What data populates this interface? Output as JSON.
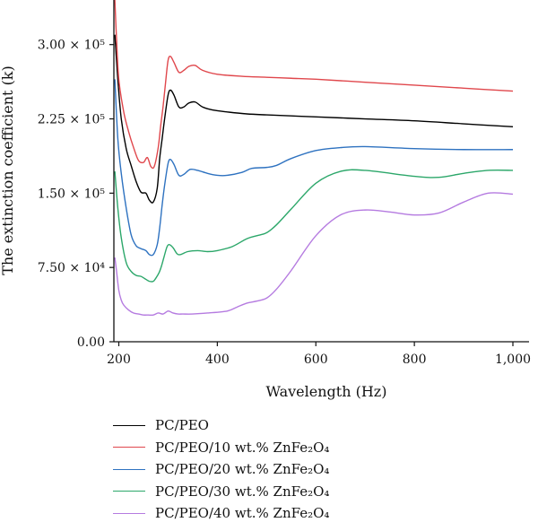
{
  "chart_data": {
    "type": "line",
    "title": "",
    "xlabel": "Wavelength (Hz)",
    "ylabel": "The extinction coefficient (k)",
    "xlim": [
      190,
      1000
    ],
    "ylim": [
      0,
      345000
    ],
    "x_ticks": [
      200,
      400,
      600,
      800,
      1000
    ],
    "x_tick_labels": [
      "200",
      "400",
      "600",
      "800",
      "1,000"
    ],
    "y_ticks": [
      0,
      75000,
      150000,
      225000,
      300000
    ],
    "y_tick_labels": [
      "0.00",
      "7.50 × 10⁴",
      "1.50 × 10⁵",
      "2.25 × 10⁵",
      "3.00 × 10⁵"
    ],
    "grid": false,
    "legend_position": "below",
    "series": [
      {
        "name": "PC/PEO",
        "color": "#000000",
        "x": [
          192,
          198,
          205,
          215,
          225,
          235,
          245,
          255,
          262,
          270,
          278,
          283,
          288,
          293,
          300,
          305,
          312,
          322,
          332,
          342,
          355,
          370,
          390,
          420,
          460,
          500,
          550,
          600,
          700,
          800,
          900,
          1000
        ],
        "y": [
          310000,
          265000,
          225000,
          195000,
          178000,
          162000,
          151000,
          150000,
          143000,
          141000,
          155000,
          185000,
          205000,
          225000,
          249000,
          254000,
          249000,
          237000,
          237000,
          241000,
          242000,
          237000,
          234000,
          232000,
          230000,
          229000,
          228000,
          227000,
          225000,
          223000,
          220000,
          217000
        ]
      },
      {
        "name": "PC/PEO/10 wt.% ZnFe₂O₄",
        "color": "#e0474c",
        "x": [
          192,
          195,
          200,
          210,
          220,
          230,
          240,
          250,
          258,
          265,
          272,
          280,
          285,
          290,
          295,
          300,
          305,
          312,
          322,
          332,
          342,
          355,
          370,
          400,
          450,
          500,
          550,
          600,
          700,
          800,
          900,
          1000
        ],
        "y": [
          345000,
          310000,
          265000,
          232000,
          212000,
          196000,
          183000,
          181000,
          186000,
          177000,
          177000,
          196000,
          218000,
          238000,
          262000,
          284000,
          288000,
          282000,
          272000,
          274000,
          278000,
          279000,
          274000,
          270000,
          268000,
          267000,
          266000,
          265000,
          262000,
          259000,
          256000,
          253000
        ]
      },
      {
        "name": "PC/PEO/20 wt.% ZnFe₂O₄",
        "color": "#2e72c0",
        "x": [
          192,
          198,
          205,
          215,
          225,
          235,
          245,
          255,
          262,
          270,
          278,
          283,
          288,
          293,
          300,
          305,
          312,
          322,
          332,
          345,
          360,
          380,
          400,
          420,
          450,
          470,
          500,
          520,
          550,
          600,
          650,
          700,
          800,
          900,
          1000
        ],
        "y": [
          265000,
          205000,
          170000,
          135000,
          108000,
          97000,
          94000,
          92000,
          88000,
          88000,
          98000,
          115000,
          138000,
          158000,
          180000,
          184000,
          179000,
          168000,
          169000,
          174000,
          173000,
          170000,
          168000,
          168000,
          171000,
          175000,
          176000,
          178000,
          185000,
          193000,
          196000,
          197000,
          195000,
          194000,
          194000
        ]
      },
      {
        "name": "PC/PEO/30 wt.% ZnFe₂O₄",
        "color": "#2ca76a",
        "x": [
          192,
          198,
          205,
          215,
          225,
          235,
          245,
          255,
          262,
          270,
          275,
          282,
          287,
          292,
          298,
          303,
          310,
          318,
          325,
          340,
          360,
          380,
          400,
          430,
          460,
          480,
          500,
          520,
          550,
          600,
          650,
          700,
          800,
          850,
          900,
          950,
          1000
        ],
        "y": [
          172000,
          135000,
          105000,
          80000,
          71000,
          67000,
          66000,
          63000,
          61000,
          61000,
          64000,
          70000,
          77000,
          86000,
          96000,
          98000,
          95000,
          89000,
          88000,
          91000,
          92000,
          91000,
          92000,
          96000,
          104000,
          107000,
          110000,
          118000,
          134000,
          160000,
          172000,
          173000,
          167000,
          166000,
          170000,
          173000,
          173000
        ]
      },
      {
        "name": "PC/PEO/40 wt.% ZnFe₂O₄",
        "color": "#b57be0",
        "x": [
          192,
          195,
          200,
          205,
          210,
          220,
          230,
          240,
          250,
          260,
          270,
          280,
          290,
          300,
          310,
          320,
          330,
          350,
          380,
          420,
          440,
          460,
          480,
          500,
          520,
          550,
          600,
          650,
          700,
          750,
          800,
          850,
          900,
          950,
          1000
        ],
        "y": [
          85000,
          73000,
          52000,
          42000,
          37000,
          32000,
          29000,
          28000,
          27000,
          27000,
          27000,
          29000,
          28000,
          31000,
          29000,
          28000,
          28000,
          28000,
          29000,
          31000,
          35000,
          39000,
          41000,
          44000,
          53000,
          72000,
          107000,
          128000,
          133000,
          131000,
          128000,
          130000,
          141000,
          150000,
          149000
        ]
      }
    ]
  }
}
